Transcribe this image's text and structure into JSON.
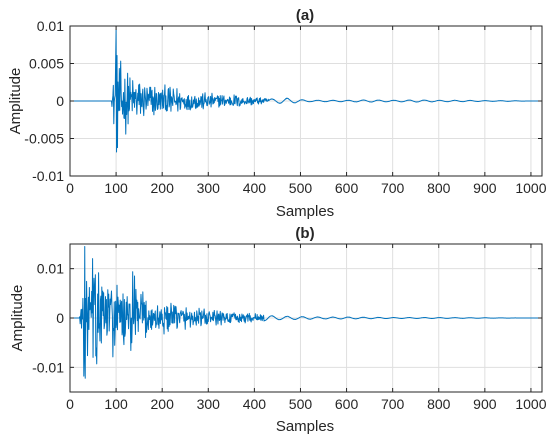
{
  "chart_data": [
    {
      "type": "line",
      "title": "(a)",
      "xlabel": "Samples",
      "ylabel": "Amplitude",
      "xlim": [
        0,
        1024
      ],
      "ylim": [
        -0.01,
        0.01
      ],
      "x_ticks": [
        0,
        100,
        200,
        300,
        400,
        500,
        600,
        700,
        800,
        900,
        1000
      ],
      "x_tick_labels": [
        "0",
        "100",
        "200",
        "300",
        "400",
        "500",
        "600",
        "700",
        "800",
        "900",
        "1000"
      ],
      "y_ticks": [
        -0.01,
        -0.005,
        0,
        0.005,
        0.01
      ],
      "y_tick_labels": [
        "-0.01",
        "-0.005",
        "0",
        "0.005",
        "0.01"
      ],
      "grid": true,
      "color": "#0072bd",
      "onset": 90,
      "peak_sample": 100,
      "peak_max": 0.0095,
      "peak_min": -0.0068,
      "series": [
        {
          "x": [
            0,
            90,
            94,
            97,
            98,
            100,
            101,
            103,
            105,
            107,
            110,
            113,
            117,
            120,
            125,
            130,
            140,
            150,
            165,
            180,
            200,
            220,
            250,
            280,
            300,
            330,
            360,
            380,
            400,
            420,
            450,
            470,
            480,
            500,
            520,
            550,
            600,
            650,
            700,
            750,
            800,
            850,
            900,
            950,
            1000,
            1024
          ],
          "y": [
            0,
            0,
            0.003,
            -0.004,
            0.006,
            0.0095,
            -0.0068,
            0.007,
            -0.005,
            0.006,
            -0.0045,
            0.004,
            -0.003,
            0.0038,
            -0.0035,
            0.003,
            -0.0025,
            0.0025,
            -0.002,
            0.002,
            -0.0018,
            0.0018,
            -0.0012,
            0.0012,
            -0.001,
            0.0008,
            -0.0008,
            0.0006,
            0.0005,
            -0.0003,
            0.0003,
            -0.0004,
            0.0003,
            0.0002,
            -0.0001,
            0.0001,
            -0.0001,
            0.00015,
            -0.0001,
            0.00015,
            -0.0001,
            0.0001,
            -5e-05,
            5e-05,
            0,
            0
          ]
        }
      ]
    },
    {
      "type": "line",
      "title": "(b)",
      "xlabel": "Samples",
      "ylabel": "Amplitude",
      "xlim": [
        0,
        1024
      ],
      "ylim": [
        -0.015,
        0.015
      ],
      "x_ticks": [
        0,
        100,
        200,
        300,
        400,
        500,
        600,
        700,
        800,
        900,
        1000
      ],
      "x_tick_labels": [
        "0",
        "100",
        "200",
        "300",
        "400",
        "500",
        "600",
        "700",
        "800",
        "900",
        "1000"
      ],
      "y_ticks": [
        -0.01,
        0,
        0.01
      ],
      "y_tick_labels": [
        "-0.01",
        "0",
        "0.01"
      ],
      "grid": true,
      "color": "#0072bd",
      "onset": 20,
      "peak_sample": 32,
      "peak_max": 0.0145,
      "peak_min": -0.0122,
      "series": [
        {
          "x": [
            0,
            20,
            25,
            30,
            32,
            35,
            40,
            45,
            50,
            55,
            60,
            65,
            70,
            80,
            90,
            100,
            110,
            120,
            130,
            140,
            145,
            150,
            160,
            170,
            180,
            200,
            230,
            260,
            300,
            350,
            400,
            450,
            500,
            550,
            600,
            700,
            800,
            900,
            1000,
            1024
          ],
          "y": [
            0,
            0,
            0.004,
            -0.012,
            0.0145,
            -0.006,
            0.008,
            -0.005,
            0.012,
            -0.01,
            0.009,
            -0.007,
            0.006,
            -0.006,
            0.007,
            -0.008,
            0.006,
            -0.005,
            0.007,
            -0.009,
            0.006,
            -0.004,
            0.005,
            -0.004,
            0.003,
            -0.003,
            0.0025,
            -0.002,
            0.0015,
            -0.001,
            0.0008,
            -0.0004,
            0.0003,
            -0.0002,
            0.0002,
            -0.0001,
            0.0001,
            -5e-05,
            0,
            0
          ]
        }
      ]
    }
  ]
}
